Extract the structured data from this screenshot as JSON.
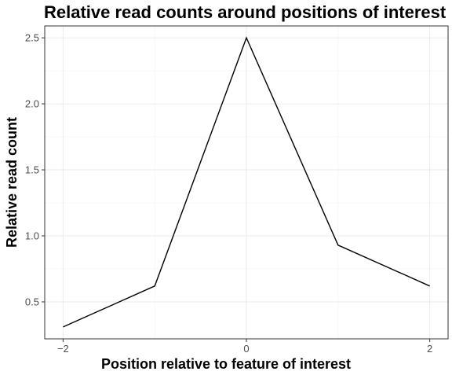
{
  "chart_data": {
    "type": "line",
    "title": "Relative read counts around positions of interest",
    "xlabel": "Position relative to feature of interest",
    "ylabel": "Relative read count",
    "x": [
      -2,
      -1,
      0,
      1,
      2
    ],
    "series": [
      {
        "values": [
          0.31,
          0.62,
          2.5,
          0.93,
          0.62
        ],
        "color": "#000000"
      }
    ],
    "xlim": [
      -2.2,
      2.2
    ],
    "ylim": [
      0.22,
      2.59
    ],
    "x_ticks": [
      -2,
      0,
      2
    ],
    "x_tick_labels": [
      "−2",
      "0",
      "2"
    ],
    "y_ticks": [
      0.5,
      1.0,
      1.5,
      2.0,
      2.5
    ],
    "y_tick_labels": [
      "0.5",
      "1.0",
      "1.5",
      "2.0",
      "2.5"
    ],
    "grid": true,
    "theme": "bw"
  }
}
